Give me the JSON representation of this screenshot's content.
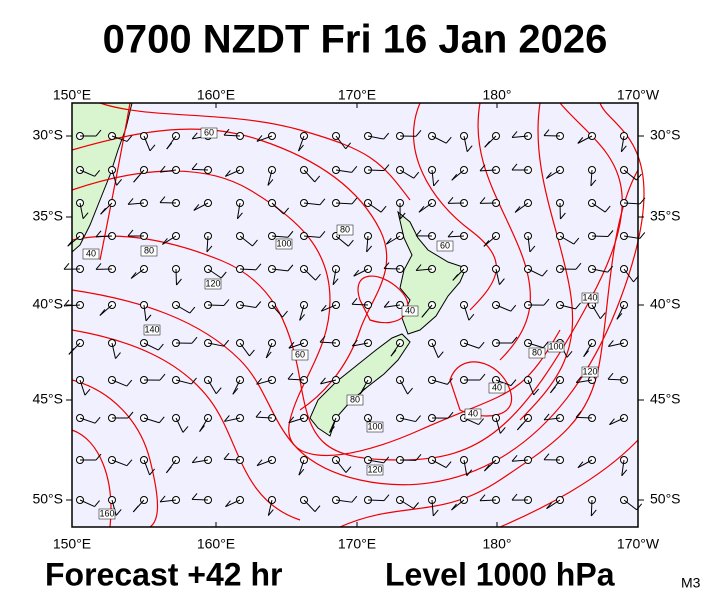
{
  "title": "0700 NZDT Fri 16 Jan 2026",
  "longitude_labels": [
    "150°E",
    "160°E",
    "170°E",
    "180°",
    "170°W"
  ],
  "latitude_labels": [
    "30°S",
    "35°S",
    "40°S",
    "45°S",
    "50°S"
  ],
  "contour_labels": [
    60,
    40,
    80,
    120,
    100,
    80,
    140,
    60,
    60,
    40,
    80,
    100,
    120,
    160,
    40,
    40,
    80,
    100,
    120,
    140
  ],
  "footer": {
    "forecast": "Forecast +42 hr",
    "level": "Level 1000 hPa",
    "code": "M3"
  }
}
